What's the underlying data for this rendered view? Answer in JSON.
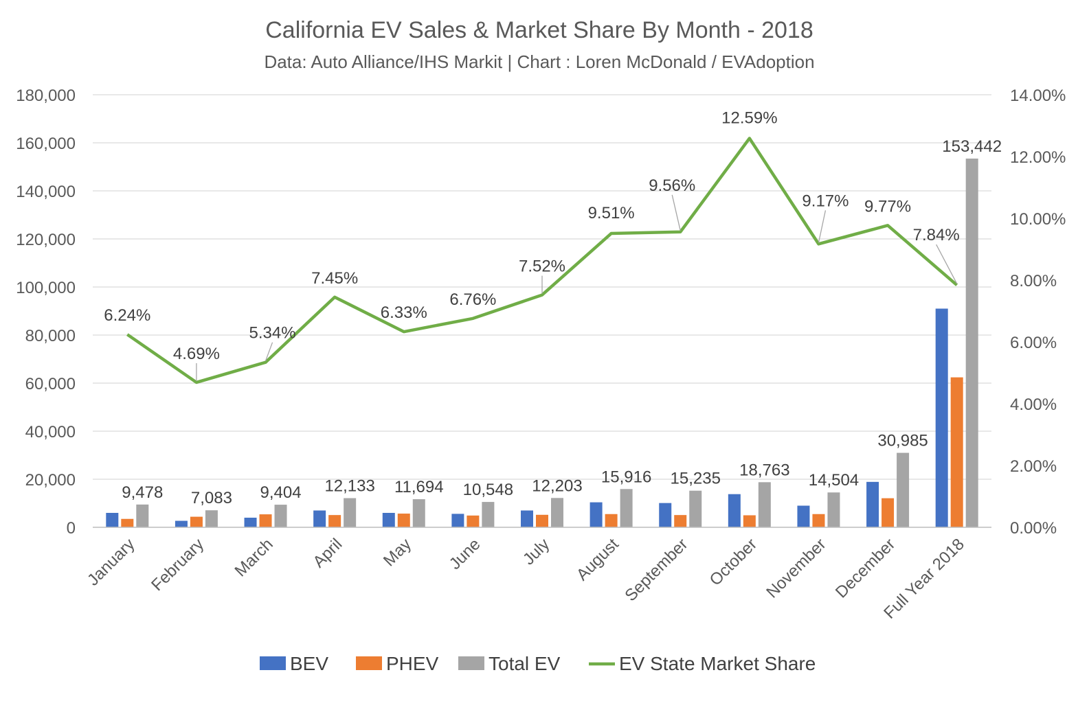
{
  "chart_data": {
    "type": "bar",
    "title": "California EV Sales & Market Share By Month - 2018",
    "subtitle": "Data: Auto Alliance/IHS Markit | Chart : Loren McDonald / EVAdoption",
    "categories": [
      "January",
      "February",
      "March",
      "April",
      "May",
      "June",
      "July",
      "August",
      "September",
      "October",
      "November",
      "December",
      "Full Year 2018"
    ],
    "series": [
      {
        "name": "BEV",
        "type": "bar",
        "axis": "left",
        "color": "#4472C4",
        "values": [
          6000,
          2700,
          4000,
          7000,
          6000,
          5600,
          7000,
          10400,
          10100,
          13800,
          9000,
          18900,
          91000
        ]
      },
      {
        "name": "PHEV",
        "type": "bar",
        "axis": "left",
        "color": "#ED7D31",
        "values": [
          3500,
          4400,
          5400,
          5100,
          5700,
          4900,
          5200,
          5500,
          5100,
          5000,
          5500,
          12100,
          62400
        ]
      },
      {
        "name": "Total EV",
        "type": "bar",
        "axis": "left",
        "color": "#A5A5A5",
        "values": [
          9478,
          7083,
          9404,
          12133,
          11694,
          10548,
          12203,
          15916,
          15235,
          18763,
          14504,
          30985,
          153442
        ],
        "labels": [
          "9,478",
          "7,083",
          "9,404",
          "12,133",
          "11,694",
          "10,548",
          "12,203",
          "15,916",
          "15,235",
          "18,763",
          "14,504",
          "30,985",
          "153,442"
        ]
      },
      {
        "name": "EV State Market Share",
        "type": "line",
        "axis": "right",
        "color": "#70AD47",
        "values": [
          6.24,
          4.69,
          5.34,
          7.45,
          6.33,
          6.76,
          7.52,
          9.51,
          9.56,
          12.59,
          9.17,
          9.77,
          7.84
        ],
        "labels": [
          "6.24%",
          "4.69%",
          "5.34%",
          "7.45%",
          "6.33%",
          "6.76%",
          "7.52%",
          "9.51%",
          "9.56%",
          "12.59%",
          "9.17%",
          "9.77%",
          "7.84%"
        ]
      }
    ],
    "y_left": {
      "ylim": [
        0,
        180000
      ],
      "step": 20000,
      "ticks": [
        "0",
        "20,000",
        "40,000",
        "60,000",
        "80,000",
        "100,000",
        "120,000",
        "140,000",
        "160,000",
        "180,000"
      ]
    },
    "y_right": {
      "ylim": [
        0,
        14
      ],
      "step": 2,
      "ticks": [
        "0.00%",
        "2.00%",
        "4.00%",
        "6.00%",
        "8.00%",
        "10.00%",
        "12.00%",
        "14.00%"
      ]
    },
    "grid": true,
    "legend_position": "bottom",
    "legend": [
      "BEV",
      "PHEV",
      "Total EV",
      "EV State Market Share"
    ]
  }
}
